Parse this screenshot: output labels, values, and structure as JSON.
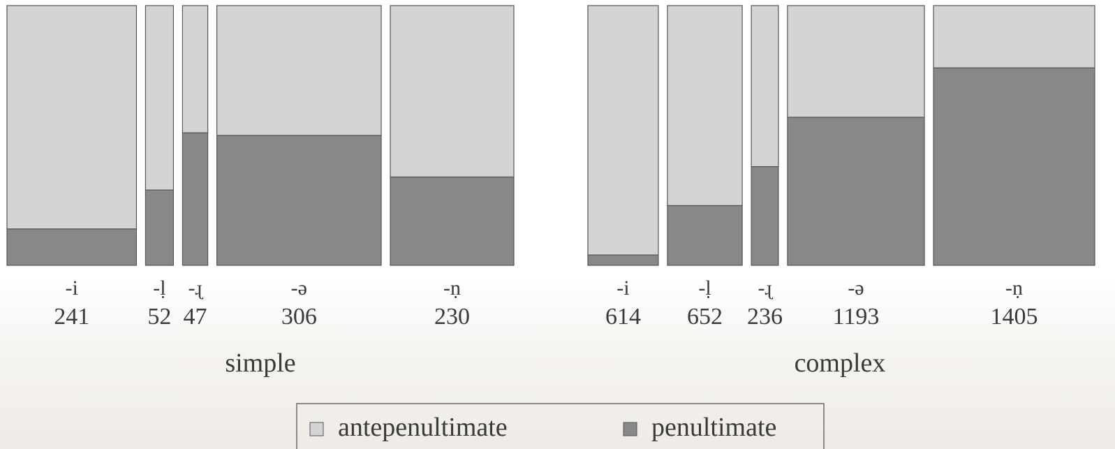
{
  "chart_data": {
    "type": "mosaic",
    "colors": {
      "antepenultimate": "#d3d4d6",
      "penultimate": "#888889",
      "border": "#555555"
    },
    "legend": {
      "position": "bottom",
      "entries": [
        {
          "key": "antepenultimate",
          "label": "antepenultimate"
        },
        {
          "key": "penultimate",
          "label": "penultimate"
        }
      ]
    },
    "groups": [
      {
        "name": "simple",
        "categories": [
          {
            "label": "-i",
            "count": "241",
            "n": 241,
            "penultimate_share": 0.14
          },
          {
            "label": "-ḷ",
            "count": "52",
            "n": 52,
            "penultimate_share": 0.29
          },
          {
            "label": "-ɻ",
            "count": "47",
            "n": 47,
            "penultimate_share": 0.51
          },
          {
            "label": "-ə",
            "count": "306",
            "n": 306,
            "penultimate_share": 0.5
          },
          {
            "label": "-ṇ",
            "count": "230",
            "n": 230,
            "penultimate_share": 0.34
          }
        ]
      },
      {
        "name": "complex",
        "categories": [
          {
            "label": "-i",
            "count": "614",
            "n": 614,
            "penultimate_share": 0.04
          },
          {
            "label": "-ḷ",
            "count": "652",
            "n": 652,
            "penultimate_share": 0.23
          },
          {
            "label": "-ɻ",
            "count": "236",
            "n": 236,
            "penultimate_share": 0.38
          },
          {
            "label": "-ə",
            "count": "1193",
            "n": 1193,
            "penultimate_share": 0.57
          },
          {
            "label": "-ṇ",
            "count": "1405",
            "n": 1405,
            "penultimate_share": 0.76
          }
        ]
      }
    ]
  }
}
